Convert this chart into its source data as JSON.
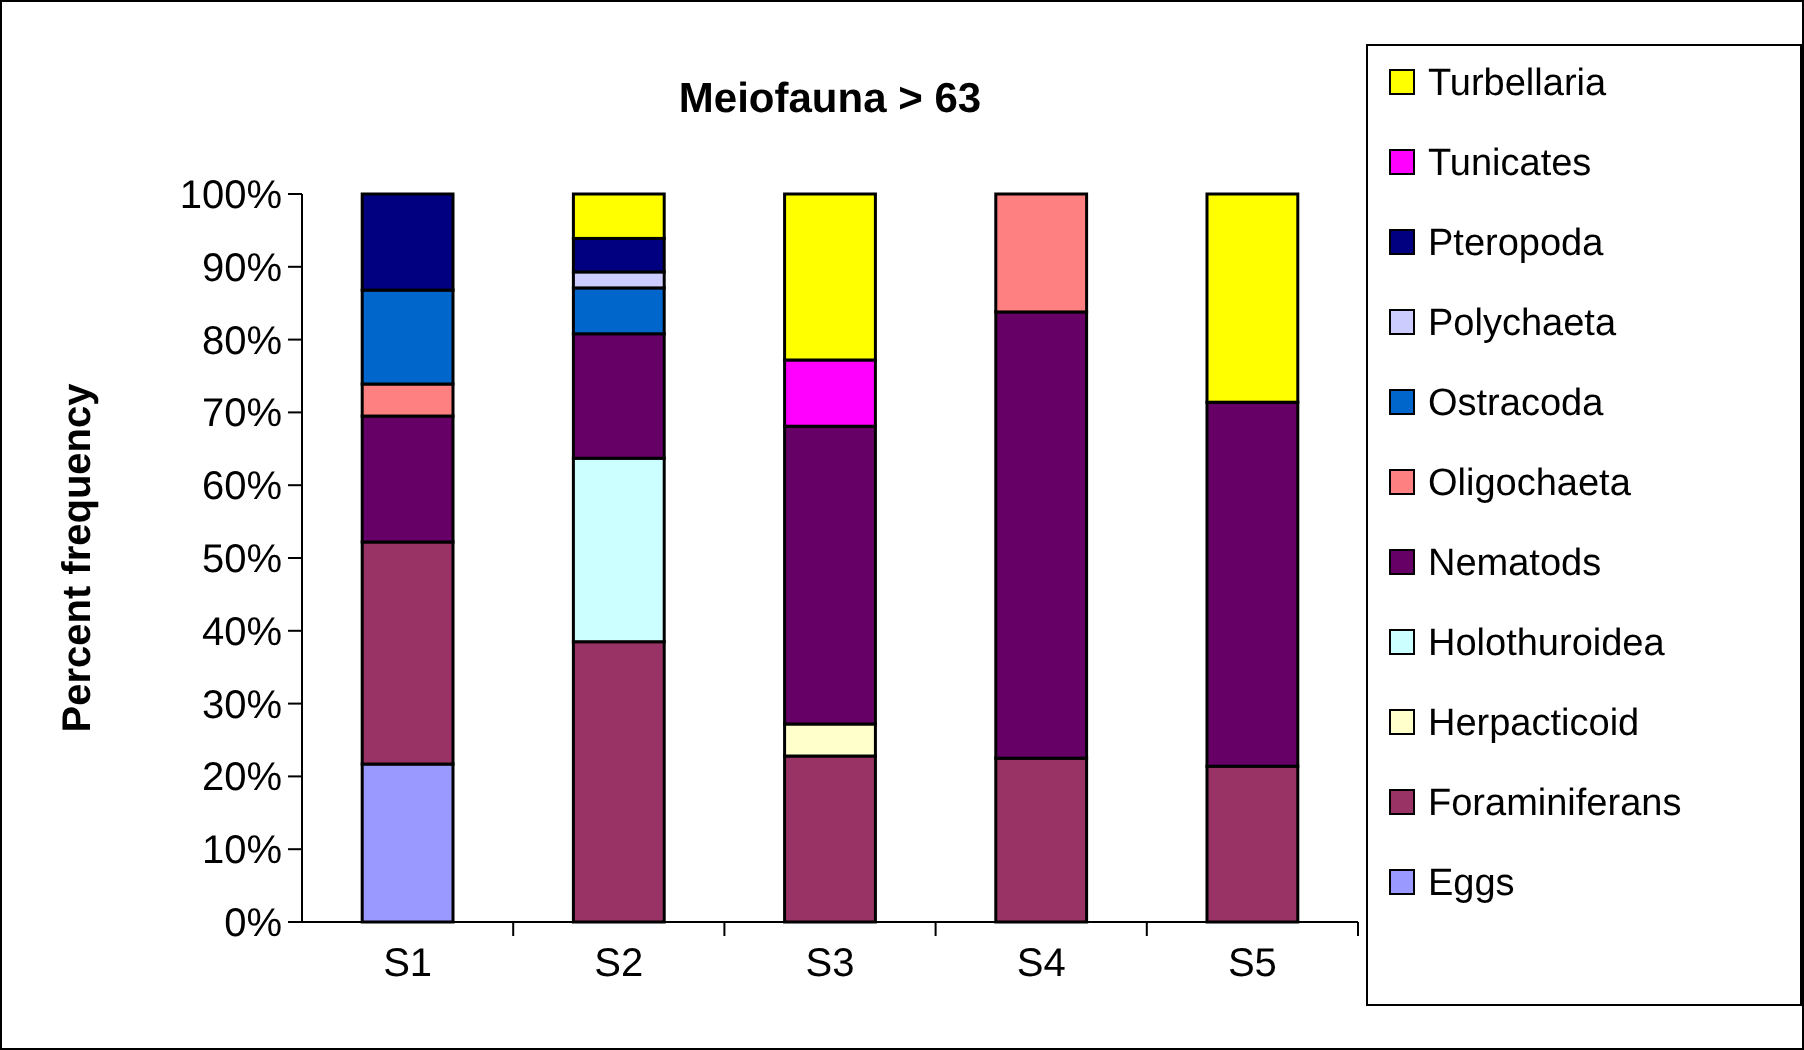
{
  "chart_data": {
    "type": "bar",
    "title": "Meiofauna > 63",
    "ylabel": "Percent frequency",
    "stacked": true,
    "legend": "right",
    "grid": false,
    "categories": [
      "S1",
      "S2",
      "S3",
      "S4",
      "S5"
    ],
    "ylim": [
      0,
      100
    ],
    "yticks": [
      {
        "value": 0,
        "label": "0%"
      },
      {
        "value": 10,
        "label": "10%"
      },
      {
        "value": 20,
        "label": "20%"
      },
      {
        "value": 30,
        "label": "30%"
      },
      {
        "value": 40,
        "label": "40%"
      },
      {
        "value": 50,
        "label": "50%"
      },
      {
        "value": 60,
        "label": "60%"
      },
      {
        "value": 70,
        "label": "70%"
      },
      {
        "value": 80,
        "label": "80%"
      },
      {
        "value": 90,
        "label": "90%"
      },
      {
        "value": 100,
        "label": "100%"
      }
    ],
    "series": [
      {
        "name": "Eggs",
        "color": "#9999ff",
        "values": [
          21.7,
          0,
          0,
          0,
          0
        ]
      },
      {
        "name": "Foraminiferans",
        "color": "#993366",
        "values": [
          30.5,
          38.5,
          22.8,
          22.5,
          21.4
        ]
      },
      {
        "name": "Herpacticoid",
        "color": "#ffffcc",
        "values": [
          0,
          0,
          4.4,
          0,
          0
        ]
      },
      {
        "name": "Holothuroidea",
        "color": "#ccffff",
        "values": [
          0,
          25.2,
          0,
          0,
          0
        ]
      },
      {
        "name": "Nematods",
        "color": "#660066",
        "values": [
          17.3,
          17.1,
          40.9,
          61.3,
          50
        ]
      },
      {
        "name": "Oligochaeta",
        "color": "#ff8080",
        "values": [
          4.4,
          0,
          0,
          16.2,
          0
        ]
      },
      {
        "name": "Ostracoda",
        "color": "#0066cc",
        "values": [
          12.9,
          6.3,
          0,
          0,
          0
        ]
      },
      {
        "name": "Polychaeta",
        "color": "#ccccff",
        "values": [
          0,
          2.2,
          0,
          0,
          0
        ]
      },
      {
        "name": "Pteropoda",
        "color": "#000080",
        "values": [
          13.2,
          4.6,
          0,
          0,
          0
        ]
      },
      {
        "name": "Tunicates",
        "color": "#ff00ff",
        "values": [
          0,
          0,
          9.1,
          0,
          0
        ]
      },
      {
        "name": "Turbellaria",
        "color": "#ffff00",
        "values": [
          0,
          6.1,
          22.8,
          0,
          28.6
        ]
      }
    ]
  }
}
